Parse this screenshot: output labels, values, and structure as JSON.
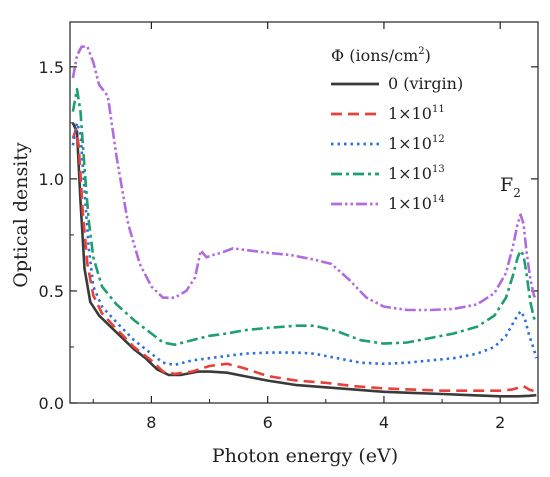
{
  "chart_data": {
    "type": "line",
    "xlabel": "Photon energy (eV)",
    "ylabel": "Optical density",
    "xlim": [
      9.4,
      1.35
    ],
    "ylim": [
      0,
      1.7
    ],
    "x_reversed": true,
    "xticks": [
      8,
      6,
      4,
      2
    ],
    "xtick_labels": [
      "8",
      "6",
      "4",
      "2"
    ],
    "yticks": [
      0.0,
      0.5,
      1.0,
      1.5
    ],
    "ytick_labels": [
      "0.0",
      "0.5",
      "1.0",
      "1.5"
    ],
    "grid": false,
    "legend": {
      "title_symbol": "Φ",
      "title_text": "(ions/cm",
      "title_sup": "2",
      "title_close": ")",
      "placement": "top-right"
    },
    "annotation": {
      "text": "F",
      "sub": "2",
      "x": 1.75,
      "y": 0.93
    },
    "series": [
      {
        "name": "0 (virgin)",
        "color": "#3a3a3a",
        "dash": "solid",
        "label_base": "0 (virgin)",
        "label_sup": "",
        "points": [
          [
            9.35,
            1.25
          ],
          [
            9.28,
            1.21
          ],
          [
            9.22,
            0.9
          ],
          [
            9.15,
            0.6
          ],
          [
            9.05,
            0.45
          ],
          [
            8.9,
            0.39
          ],
          [
            8.7,
            0.34
          ],
          [
            8.5,
            0.29
          ],
          [
            8.3,
            0.24
          ],
          [
            8.1,
            0.2
          ],
          [
            7.9,
            0.15
          ],
          [
            7.7,
            0.125
          ],
          [
            7.5,
            0.125
          ],
          [
            7.2,
            0.14
          ],
          [
            7.0,
            0.14
          ],
          [
            6.7,
            0.135
          ],
          [
            6.4,
            0.12
          ],
          [
            6.0,
            0.1
          ],
          [
            5.5,
            0.08
          ],
          [
            5.0,
            0.07
          ],
          [
            4.5,
            0.06
          ],
          [
            4.0,
            0.05
          ],
          [
            3.5,
            0.045
          ],
          [
            3.0,
            0.04
          ],
          [
            2.5,
            0.035
          ],
          [
            2.0,
            0.03
          ],
          [
            1.7,
            0.03
          ],
          [
            1.5,
            0.032
          ],
          [
            1.38,
            0.035
          ]
        ]
      },
      {
        "name": "1×10^11",
        "color": "#e8403a",
        "dash": "dashed",
        "label_base": "1×10",
        "label_sup": "11",
        "points": [
          [
            9.35,
            1.18
          ],
          [
            9.3,
            1.22
          ],
          [
            9.25,
            1.15
          ],
          [
            9.18,
            0.85
          ],
          [
            9.1,
            0.62
          ],
          [
            9.0,
            0.48
          ],
          [
            8.85,
            0.4
          ],
          [
            8.6,
            0.33
          ],
          [
            8.3,
            0.25
          ],
          [
            8.0,
            0.19
          ],
          [
            7.8,
            0.14
          ],
          [
            7.6,
            0.13
          ],
          [
            7.3,
            0.14
          ],
          [
            7.0,
            0.165
          ],
          [
            6.7,
            0.175
          ],
          [
            6.4,
            0.155
          ],
          [
            6.0,
            0.12
          ],
          [
            5.5,
            0.1
          ],
          [
            5.0,
            0.09
          ],
          [
            4.5,
            0.075
          ],
          [
            4.0,
            0.065
          ],
          [
            3.5,
            0.06
          ],
          [
            3.0,
            0.055
          ],
          [
            2.5,
            0.055
          ],
          [
            2.0,
            0.055
          ],
          [
            1.8,
            0.06
          ],
          [
            1.6,
            0.075
          ],
          [
            1.5,
            0.06
          ],
          [
            1.38,
            0.05
          ]
        ]
      },
      {
        "name": "1×10^12",
        "color": "#2a6fdb",
        "dash": "dotted",
        "label_base": "1×10",
        "label_sup": "12",
        "points": [
          [
            9.35,
            1.15
          ],
          [
            9.28,
            1.25
          ],
          [
            9.22,
            1.2
          ],
          [
            9.15,
            0.95
          ],
          [
            9.08,
            0.7
          ],
          [
            9.0,
            0.52
          ],
          [
            8.85,
            0.43
          ],
          [
            8.6,
            0.36
          ],
          [
            8.3,
            0.28
          ],
          [
            8.0,
            0.22
          ],
          [
            7.8,
            0.18
          ],
          [
            7.6,
            0.17
          ],
          [
            7.3,
            0.19
          ],
          [
            7.0,
            0.2
          ],
          [
            6.7,
            0.21
          ],
          [
            6.4,
            0.22
          ],
          [
            6.0,
            0.225
          ],
          [
            5.5,
            0.225
          ],
          [
            5.2,
            0.22
          ],
          [
            4.8,
            0.2
          ],
          [
            4.4,
            0.18
          ],
          [
            4.0,
            0.175
          ],
          [
            3.6,
            0.18
          ],
          [
            3.2,
            0.19
          ],
          [
            2.8,
            0.2
          ],
          [
            2.4,
            0.22
          ],
          [
            2.1,
            0.25
          ],
          [
            1.9,
            0.3
          ],
          [
            1.75,
            0.37
          ],
          [
            1.65,
            0.41
          ],
          [
            1.58,
            0.38
          ],
          [
            1.5,
            0.3
          ],
          [
            1.42,
            0.24
          ],
          [
            1.38,
            0.2
          ]
        ]
      },
      {
        "name": "1×10^13",
        "color": "#1f9e6f",
        "dash": "dashdot",
        "label_base": "1×10",
        "label_sup": "13",
        "points": [
          [
            9.35,
            1.3
          ],
          [
            9.28,
            1.4
          ],
          [
            9.22,
            1.3
          ],
          [
            9.15,
            1.05
          ],
          [
            9.08,
            0.82
          ],
          [
            9.0,
            0.65
          ],
          [
            8.85,
            0.52
          ],
          [
            8.6,
            0.44
          ],
          [
            8.3,
            0.37
          ],
          [
            8.0,
            0.31
          ],
          [
            7.8,
            0.27
          ],
          [
            7.6,
            0.26
          ],
          [
            7.3,
            0.28
          ],
          [
            7.0,
            0.3
          ],
          [
            6.7,
            0.31
          ],
          [
            6.4,
            0.325
          ],
          [
            6.0,
            0.335
          ],
          [
            5.5,
            0.345
          ],
          [
            5.2,
            0.345
          ],
          [
            4.8,
            0.32
          ],
          [
            4.4,
            0.28
          ],
          [
            4.0,
            0.265
          ],
          [
            3.6,
            0.27
          ],
          [
            3.2,
            0.29
          ],
          [
            2.8,
            0.31
          ],
          [
            2.4,
            0.34
          ],
          [
            2.1,
            0.39
          ],
          [
            1.9,
            0.47
          ],
          [
            1.78,
            0.57
          ],
          [
            1.7,
            0.65
          ],
          [
            1.65,
            0.68
          ],
          [
            1.6,
            0.66
          ],
          [
            1.55,
            0.58
          ],
          [
            1.48,
            0.45
          ],
          [
            1.42,
            0.38
          ],
          [
            1.38,
            0.36
          ]
        ]
      },
      {
        "name": "1×10^14",
        "color": "#b06cde",
        "dash": "dashdotdot",
        "label_base": "1×10",
        "label_sup": "14",
        "points": [
          [
            9.35,
            1.45
          ],
          [
            9.28,
            1.55
          ],
          [
            9.2,
            1.59
          ],
          [
            9.1,
            1.59
          ],
          [
            9.0,
            1.52
          ],
          [
            8.9,
            1.42
          ],
          [
            8.75,
            1.37
          ],
          [
            8.6,
            1.1
          ],
          [
            8.4,
            0.8
          ],
          [
            8.2,
            0.62
          ],
          [
            8.0,
            0.52
          ],
          [
            7.8,
            0.47
          ],
          [
            7.6,
            0.47
          ],
          [
            7.4,
            0.5
          ],
          [
            7.25,
            0.56
          ],
          [
            7.15,
            0.68
          ],
          [
            7.05,
            0.65
          ],
          [
            6.95,
            0.66
          ],
          [
            6.8,
            0.67
          ],
          [
            6.6,
            0.69
          ],
          [
            6.3,
            0.68
          ],
          [
            6.0,
            0.67
          ],
          [
            5.6,
            0.66
          ],
          [
            5.2,
            0.64
          ],
          [
            4.9,
            0.62
          ],
          [
            4.6,
            0.55
          ],
          [
            4.3,
            0.47
          ],
          [
            4.0,
            0.43
          ],
          [
            3.6,
            0.415
          ],
          [
            3.2,
            0.415
          ],
          [
            2.8,
            0.42
          ],
          [
            2.4,
            0.44
          ],
          [
            2.1,
            0.49
          ],
          [
            1.9,
            0.58
          ],
          [
            1.78,
            0.7
          ],
          [
            1.7,
            0.8
          ],
          [
            1.65,
            0.84
          ],
          [
            1.6,
            0.8
          ],
          [
            1.55,
            0.68
          ],
          [
            1.48,
            0.55
          ],
          [
            1.42,
            0.48
          ],
          [
            1.38,
            0.46
          ]
        ]
      }
    ]
  }
}
